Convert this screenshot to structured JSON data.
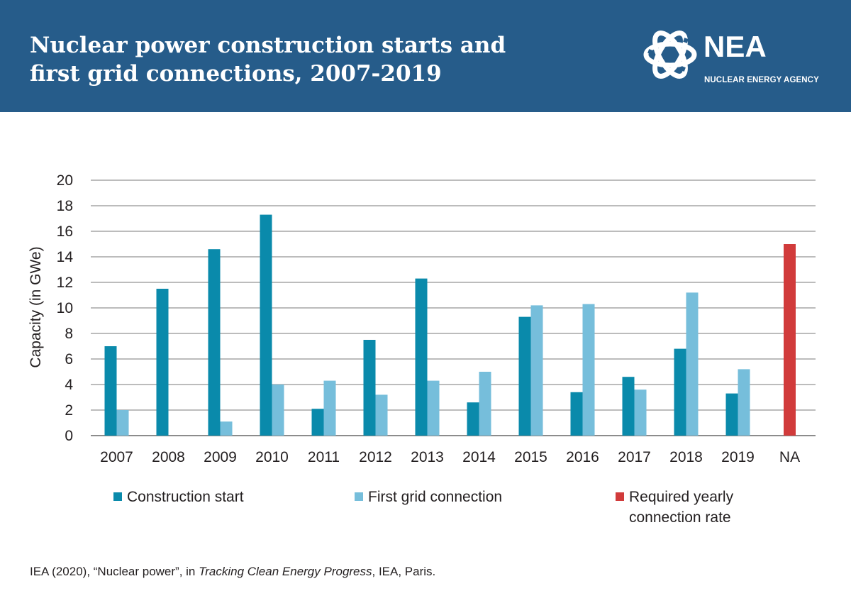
{
  "header": {
    "title_line1": "Nuclear power construction starts and",
    "title_line2": "first grid connections, 2007-2019",
    "logo_name": "NEA",
    "logo_subtitle": "NUCLEAR ENERGY AGENCY"
  },
  "source": {
    "prefix": "IEA (2020), “Nuclear power”, in ",
    "italic": "Tracking Clean Energy Progress",
    "suffix": ", IEA, Paris."
  },
  "colors": {
    "header_bg": "#265c8a",
    "construction": "#0a8aab",
    "grid_connection": "#76bedb",
    "required": "#d13b3b",
    "gridline": "#a6a6a6"
  },
  "chart_data": {
    "type": "bar",
    "ylabel": "Capacity (in GWe)",
    "xlabel": "",
    "ylim": [
      0,
      20
    ],
    "yticks": [
      0,
      2,
      4,
      6,
      8,
      10,
      12,
      14,
      16,
      18,
      20
    ],
    "grid": true,
    "legend_position": "bottom",
    "categories": [
      "2007",
      "2008",
      "2009",
      "2010",
      "2011",
      "2012",
      "2013",
      "2014",
      "2015",
      "2016",
      "2017",
      "2018",
      "2019",
      "NA"
    ],
    "series": [
      {
        "name": "Construction start",
        "color": "#0a8aab",
        "values": [
          7.0,
          11.5,
          14.6,
          17.3,
          2.1,
          7.5,
          12.3,
          2.6,
          9.3,
          3.4,
          4.6,
          6.8,
          3.3,
          null
        ]
      },
      {
        "name": "First grid connection",
        "color": "#76bedb",
        "values": [
          2.0,
          0,
          1.1,
          4.0,
          4.3,
          3.2,
          4.3,
          5.0,
          10.2,
          10.3,
          3.6,
          11.2,
          5.2,
          null
        ]
      },
      {
        "name": "Required yearly connection rate",
        "color": "#d13b3b",
        "values": [
          null,
          null,
          null,
          null,
          null,
          null,
          null,
          null,
          null,
          null,
          null,
          null,
          null,
          15.0
        ]
      }
    ],
    "legend": [
      {
        "label_line1": "Construction start",
        "label_line2": ""
      },
      {
        "label_line1": "First grid connection",
        "label_line2": ""
      },
      {
        "label_line1": "Required yearly",
        "label_line2": "connection rate"
      }
    ]
  }
}
